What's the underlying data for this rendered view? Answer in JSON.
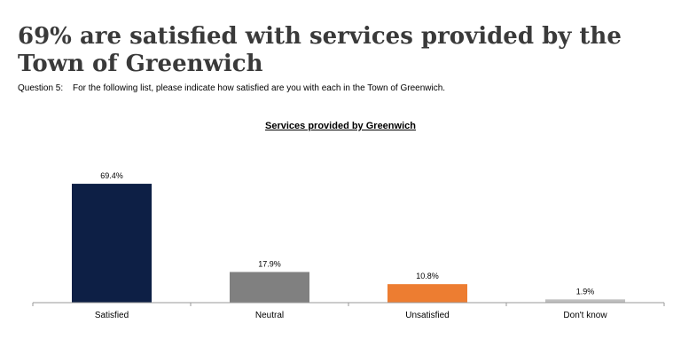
{
  "headline": "69% are satisfied with services provided by the Town of Greenwich",
  "question": {
    "number": "Question 5:",
    "text": "For the following list, please indicate how satisfied are you with each in the Town of Greenwich."
  },
  "chart_data": {
    "type": "bar",
    "title": "Services provided by Greenwich",
    "categories": [
      "Satisfied",
      "Neutral",
      "Unsatisfied",
      "Don't know"
    ],
    "values": [
      69.4,
      17.9,
      10.8,
      1.9
    ],
    "value_labels": [
      "69.4%",
      "17.9%",
      "10.8%",
      "1.9%"
    ],
    "colors": [
      "#0d1f45",
      "#808080",
      "#ed7d31",
      "#bfbfbf"
    ],
    "xlabel": "",
    "ylabel": "",
    "ylim": [
      0,
      100
    ],
    "grid": false,
    "legend": "none"
  }
}
